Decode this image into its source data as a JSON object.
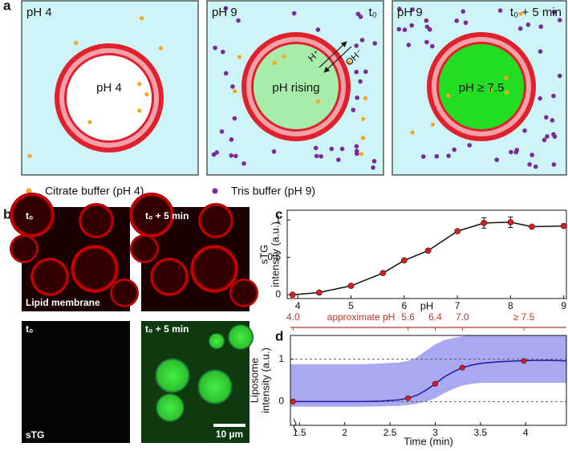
{
  "panel_labels": [
    "a",
    "b",
    "c",
    "d"
  ],
  "schematic": {
    "boxes": [
      {
        "corner_label": "pH 4",
        "center_label": "pH 4"
      },
      {
        "corner_label": "pH 9",
        "time_label": "t₀",
        "center_label": "pH rising",
        "arrow_labels": [
          "H⁺",
          "OH⁻"
        ]
      },
      {
        "corner_label": "pH 9",
        "time_label": "t₀ + 5 min",
        "center_label": "pH ≥ 7.5"
      }
    ],
    "legend": [
      {
        "label": "Citrate buffer (pH 4)",
        "color": "#f5a623"
      },
      {
        "label": "Tris buffer (pH 9)",
        "color": "#7b2a9a"
      }
    ]
  },
  "micrographs": [
    {
      "time_label": "t₀",
      "channel_label": "Lipid membrane"
    },
    {
      "time_label": "t₀ + 5 min"
    },
    {
      "time_label": "t₀",
      "channel_label": "sTG"
    },
    {
      "time_label": "t₀ + 5 min",
      "scale_bar": "10 µm"
    }
  ],
  "chart_data": [
    {
      "type": "line",
      "xlabel": "pH",
      "ylabel": [
        "sTG",
        "intensity (a.u.)"
      ],
      "x": [
        3.9,
        4.4,
        5.0,
        5.6,
        6.0,
        6.45,
        7.0,
        7.5,
        8.0,
        8.4,
        9.0
      ],
      "values": [
        0.0,
        0.03,
        0.12,
        0.29,
        0.46,
        0.59,
        0.85,
        0.96,
        0.97,
        0.91,
        0.92
      ],
      "errors": [
        null,
        null,
        null,
        null,
        null,
        null,
        null,
        0.07,
        0.07,
        null,
        null
      ],
      "color": "#111111",
      "marker_color": "#d62020",
      "xlim": [
        3.8,
        9.05
      ],
      "ylim": [
        -0.05,
        1.13
      ],
      "xticks": [
        4,
        5,
        6,
        7,
        8,
        9
      ],
      "yticks": [
        0,
        0.5,
        1
      ]
    },
    {
      "type": "line",
      "xlabel": "Time (min)",
      "ylabel": [
        "Liposome",
        "intensity (a.u.)"
      ],
      "x": [
        1.4,
        1.6,
        1.8,
        2.0,
        2.2,
        2.4,
        2.6,
        2.7,
        2.8,
        2.9,
        3.0,
        3.1,
        3.2,
        3.3,
        3.4,
        3.5,
        3.7,
        3.9,
        4.1,
        4.3,
        4.45
      ],
      "values": [
        0,
        0,
        0,
        0,
        0,
        0.01,
        0.04,
        0.08,
        0.15,
        0.27,
        0.42,
        0.58,
        0.7,
        0.8,
        0.86,
        0.9,
        0.94,
        0.96,
        0.97,
        0.97,
        0.96
      ],
      "color": "#1a1aa0",
      "band": {
        "color": "#9a9af0",
        "upper": [
          0.88,
          0.88,
          0.88,
          0.88,
          0.88,
          0.9,
          0.92,
          0.96,
          1.05,
          1.2,
          1.35,
          1.45,
          1.5,
          1.54,
          1.56,
          1.56,
          1.56,
          1.56,
          1.56,
          1.56,
          1.56
        ],
        "lower": [
          -0.12,
          -0.12,
          -0.12,
          -0.12,
          -0.12,
          -0.11,
          -0.1,
          -0.08,
          -0.05,
          0.0,
          0.08,
          0.2,
          0.3,
          0.38,
          0.42,
          0.44,
          0.44,
          0.44,
          0.44,
          0.44,
          0.44
        ]
      },
      "markers": {
        "x": [
          1.43,
          2.7,
          3.0,
          3.3,
          3.98
        ],
        "values": [
          0,
          0.08,
          0.42,
          0.8,
          0.96
        ],
        "color": "#d62020"
      },
      "top_axis": {
        "label": "approximate pH",
        "color": "#c0392b",
        "ticks": [
          {
            "value": 1.43,
            "label": "4.0"
          },
          {
            "value": 2.7,
            "label": "5.6"
          },
          {
            "value": 3.0,
            "label": "6.4"
          },
          {
            "value": 3.3,
            "label": "7.0"
          },
          {
            "value": 3.98,
            "label": "≥ 7.5"
          }
        ]
      },
      "grid": "dashed",
      "xlim": [
        1.4,
        4.45
      ],
      "ylim": [
        -0.56,
        1.56
      ],
      "xticks": [
        1.5,
        2,
        2.5,
        3,
        3.5,
        4
      ],
      "yticks": [
        0,
        1
      ]
    }
  ]
}
